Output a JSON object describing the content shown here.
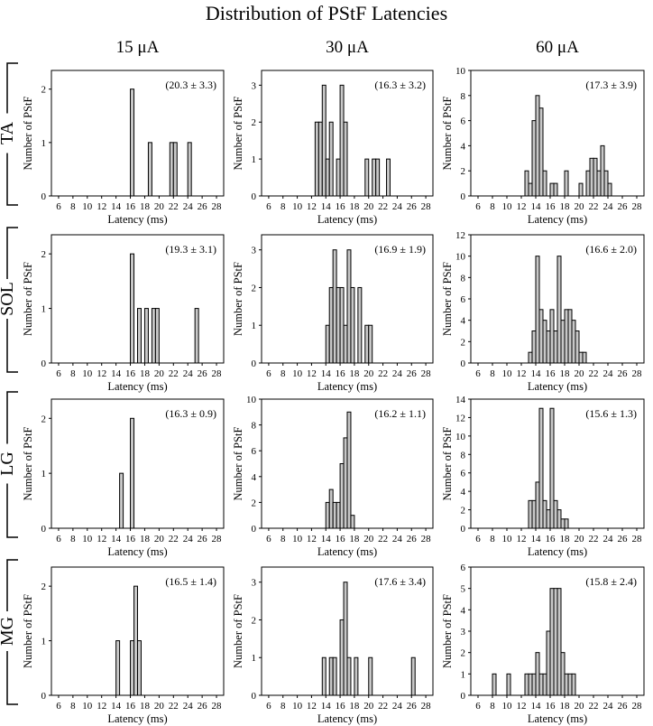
{
  "title": "Distribution of PStF Latencies",
  "columns": [
    "15 μA",
    "30 μA",
    "60 μA"
  ],
  "rows": [
    "TA",
    "SOL",
    "LG",
    "MG"
  ],
  "xlabel": "Latency (ms)",
  "ylabel": "Number of PStF",
  "x_ticks": [
    6,
    8,
    10,
    12,
    14,
    16,
    18,
    20,
    22,
    24,
    26,
    28
  ],
  "bin_width_ms": 0.5,
  "colors": {
    "bar_fill": "#c8c8c8",
    "stroke": "#000000"
  },
  "chart_data": [
    {
      "type": "bar",
      "row": "TA",
      "column": "15 μA",
      "annotation": "(20.3 ± 3.3)",
      "ylim": [
        0,
        2.35
      ],
      "yticks": [
        0,
        1,
        2
      ],
      "bins": [
        [
          16,
          2
        ],
        [
          18.5,
          1
        ],
        [
          21.5,
          1
        ],
        [
          22,
          1
        ],
        [
          24,
          1
        ]
      ]
    },
    {
      "type": "bar",
      "row": "TA",
      "column": "30 μA",
      "annotation": "(16.3 ± 3.2)",
      "ylim": [
        0,
        3.4
      ],
      "yticks": [
        0,
        1,
        2,
        3
      ],
      "bins": [
        [
          12.5,
          2
        ],
        [
          13,
          2
        ],
        [
          13.5,
          3
        ],
        [
          14,
          1
        ],
        [
          14.5,
          2
        ],
        [
          15.5,
          1
        ],
        [
          16,
          3
        ],
        [
          16.5,
          2
        ],
        [
          19.5,
          1
        ],
        [
          20.5,
          1
        ],
        [
          21,
          1
        ],
        [
          22.5,
          1
        ]
      ]
    },
    {
      "type": "bar",
      "row": "TA",
      "column": "60 μA",
      "annotation": "(17.3 ± 3.9)",
      "ylim": [
        0,
        10
      ],
      "yticks": [
        0,
        2,
        4,
        6,
        8,
        10
      ],
      "bins": [
        [
          12.5,
          2
        ],
        [
          13,
          1
        ],
        [
          13.5,
          6
        ],
        [
          14,
          8
        ],
        [
          14.5,
          7
        ],
        [
          15,
          2
        ],
        [
          16,
          1
        ],
        [
          16.5,
          1
        ],
        [
          18,
          2
        ],
        [
          20,
          1
        ],
        [
          21,
          2
        ],
        [
          21.5,
          3
        ],
        [
          22,
          3
        ],
        [
          22.5,
          2
        ],
        [
          23,
          4
        ],
        [
          23.5,
          2
        ],
        [
          24,
          1
        ]
      ]
    },
    {
      "type": "bar",
      "row": "SOL",
      "column": "15 μA",
      "annotation": "(19.3 ± 3.1)",
      "ylim": [
        0,
        2.35
      ],
      "yticks": [
        0,
        1,
        2
      ],
      "bins": [
        [
          16,
          2
        ],
        [
          17,
          1
        ],
        [
          18,
          1
        ],
        [
          19,
          1
        ],
        [
          19.5,
          1
        ],
        [
          25,
          1
        ]
      ]
    },
    {
      "type": "bar",
      "row": "SOL",
      "column": "30 μA",
      "annotation": "(16.9 ± 1.9)",
      "ylim": [
        0,
        3.4
      ],
      "yticks": [
        0,
        1,
        2,
        3
      ],
      "bins": [
        [
          14,
          1
        ],
        [
          14.5,
          2
        ],
        [
          15,
          3
        ],
        [
          15.5,
          2
        ],
        [
          16,
          2
        ],
        [
          16.5,
          1
        ],
        [
          17,
          3
        ],
        [
          17.5,
          2
        ],
        [
          18.5,
          2
        ],
        [
          19.5,
          1
        ],
        [
          20,
          1
        ]
      ]
    },
    {
      "type": "bar",
      "row": "SOL",
      "column": "60 μA",
      "annotation": "(16.6 ± 2.0)",
      "ylim": [
        0,
        12
      ],
      "yticks": [
        0,
        2,
        4,
        6,
        8,
        10,
        12
      ],
      "bins": [
        [
          13,
          1
        ],
        [
          13.5,
          3
        ],
        [
          14,
          10
        ],
        [
          14.5,
          5
        ],
        [
          15,
          4
        ],
        [
          15.5,
          3
        ],
        [
          16,
          5
        ],
        [
          16.5,
          3
        ],
        [
          17,
          10
        ],
        [
          17.5,
          4
        ],
        [
          18,
          5
        ],
        [
          18.5,
          5
        ],
        [
          19,
          4
        ],
        [
          19.5,
          3
        ],
        [
          20,
          1
        ],
        [
          20.5,
          1
        ]
      ]
    },
    {
      "type": "bar",
      "row": "LG",
      "column": "15 μA",
      "annotation": "(16.3 ± 0.9)",
      "ylim": [
        0,
        2.35
      ],
      "yticks": [
        0,
        1,
        2
      ],
      "bins": [
        [
          14.5,
          1
        ],
        [
          16,
          2
        ]
      ]
    },
    {
      "type": "bar",
      "row": "LG",
      "column": "30 μA",
      "annotation": "(16.2 ± 1.1)",
      "ylim": [
        0,
        10
      ],
      "yticks": [
        0,
        2,
        4,
        6,
        8,
        10
      ],
      "bins": [
        [
          14,
          2
        ],
        [
          14.5,
          3
        ],
        [
          15,
          2
        ],
        [
          15.5,
          2
        ],
        [
          16,
          5
        ],
        [
          16.5,
          7
        ],
        [
          17,
          9
        ],
        [
          17.5,
          1
        ]
      ]
    },
    {
      "type": "bar",
      "row": "LG",
      "column": "60 μA",
      "annotation": "(15.6 ± 1.3)",
      "ylim": [
        0,
        14
      ],
      "yticks": [
        0,
        2,
        4,
        6,
        8,
        10,
        12,
        14
      ],
      "bins": [
        [
          13,
          3
        ],
        [
          13.5,
          3
        ],
        [
          14,
          5
        ],
        [
          14.5,
          13
        ],
        [
          15,
          3
        ],
        [
          15.5,
          2
        ],
        [
          16,
          13
        ],
        [
          16.5,
          3
        ],
        [
          17,
          2
        ],
        [
          17.5,
          1
        ],
        [
          18,
          1
        ]
      ]
    },
    {
      "type": "bar",
      "row": "MG",
      "column": "15 μA",
      "annotation": "(16.5 ± 1.4)",
      "ylim": [
        0,
        2.35
      ],
      "yticks": [
        0,
        1,
        2
      ],
      "bins": [
        [
          14,
          1
        ],
        [
          16,
          1
        ],
        [
          16.5,
          2
        ],
        [
          17,
          1
        ]
      ]
    },
    {
      "type": "bar",
      "row": "MG",
      "column": "30 μA",
      "annotation": "(17.6 ± 3.4)",
      "ylim": [
        0,
        3.4
      ],
      "yticks": [
        0,
        1,
        2,
        3
      ],
      "bins": [
        [
          13.5,
          1
        ],
        [
          14.5,
          1
        ],
        [
          15,
          1
        ],
        [
          16,
          2
        ],
        [
          16.5,
          3
        ],
        [
          17,
          1
        ],
        [
          18,
          1
        ],
        [
          20,
          1
        ],
        [
          26,
          1
        ]
      ]
    },
    {
      "type": "bar",
      "row": "MG",
      "column": "60 μA",
      "annotation": "(15.8 ± 2.4)",
      "ylim": [
        0,
        6
      ],
      "yticks": [
        0,
        1,
        2,
        3,
        4,
        5,
        6
      ],
      "bins": [
        [
          8,
          1
        ],
        [
          10,
          1
        ],
        [
          12.5,
          1
        ],
        [
          13,
          1
        ],
        [
          13.5,
          1
        ],
        [
          14,
          2
        ],
        [
          14.5,
          1
        ],
        [
          15,
          1
        ],
        [
          15.5,
          3
        ],
        [
          16,
          5
        ],
        [
          16.5,
          5
        ],
        [
          17,
          5
        ],
        [
          17.5,
          2
        ],
        [
          18,
          1
        ],
        [
          18.5,
          1
        ],
        [
          19,
          1
        ]
      ]
    }
  ]
}
